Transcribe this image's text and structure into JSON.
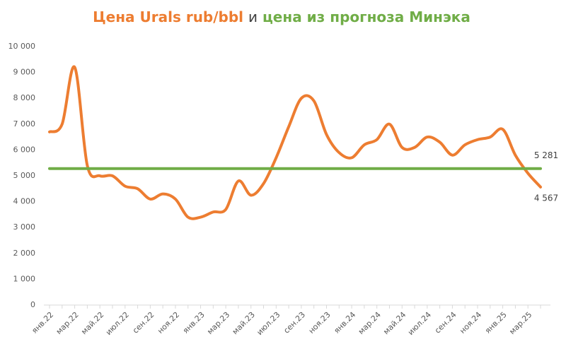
{
  "chart_data": {
    "type": "line",
    "title": [
      "Цена Urals rub/bbl",
      "и",
      "цена из прогноза Минэка"
    ],
    "title_colors": [
      "#ed7d31",
      "#404040",
      "#70ad47"
    ],
    "categories": [
      "янв.22",
      null,
      "мар.22",
      null,
      "май.22",
      null,
      "июл.22",
      null,
      "сен.22",
      null,
      "ноя.22",
      null,
      "янв.23",
      null,
      "мар.23",
      null,
      "май.23",
      null,
      "июл.23",
      null,
      "сен.23",
      null,
      "ноя.23",
      null,
      "янв.24",
      null,
      "мар.24",
      null,
      "май.24",
      null,
      "июл.24",
      null,
      "сен.24",
      null,
      "ноя.24",
      null,
      "янв.25",
      null,
      "мар.25",
      null
    ],
    "series": [
      {
        "name": "Цена Urals rub/bbl",
        "color": "#ed7d31",
        "values": [
          6700,
          7000,
          9200,
          5400,
          5000,
          5000,
          4600,
          4500,
          4100,
          4300,
          4100,
          3400,
          3400,
          3600,
          3700,
          4800,
          4250,
          4700,
          5700,
          6900,
          8000,
          7900,
          6600,
          5900,
          5700,
          6200,
          6400,
          7000,
          6100,
          6100,
          6500,
          6300,
          5800,
          6200,
          6400,
          6500,
          6800,
          5800,
          5100,
          4567
        ],
        "value_labels": [
          null,
          null,
          null,
          null,
          null,
          null,
          null,
          null,
          null,
          null,
          null,
          null,
          null,
          null,
          null,
          null,
          null,
          null,
          null,
          null,
          null,
          null,
          null,
          null,
          null,
          null,
          null,
          null,
          null,
          null,
          null,
          null,
          null,
          null,
          null,
          null,
          null,
          null,
          null,
          "4 567"
        ]
      },
      {
        "name": "цена из прогноза Минэка",
        "color": "#70ad47",
        "values": [
          5281,
          5281,
          5281,
          5281,
          5281,
          5281,
          5281,
          5281,
          5281,
          5281,
          5281,
          5281,
          5281,
          5281,
          5281,
          5281,
          5281,
          5281,
          5281,
          5281,
          5281,
          5281,
          5281,
          5281,
          5281,
          5281,
          5281,
          5281,
          5281,
          5281,
          5281,
          5281,
          5281,
          5281,
          5281,
          5281,
          5281,
          5281,
          5281,
          5281
        ],
        "value_labels": [
          null,
          null,
          null,
          null,
          null,
          null,
          null,
          null,
          null,
          null,
          null,
          null,
          null,
          null,
          null,
          null,
          null,
          null,
          null,
          null,
          null,
          null,
          null,
          null,
          null,
          null,
          null,
          null,
          null,
          null,
          null,
          null,
          null,
          null,
          null,
          null,
          null,
          null,
          null,
          "5 281"
        ]
      }
    ],
    "ylim": [
      0,
      10000
    ],
    "yticks": [
      0,
      {
        "value": 1000,
        "label": "1 000"
      },
      {
        "value": 2000,
        "label": "2 000"
      },
      {
        "value": 3000,
        "label": "3 000"
      },
      {
        "value": 4000,
        "label": "4 000"
      },
      {
        "value": 5000,
        "label": "5 000"
      },
      {
        "value": 6000,
        "label": "6 000"
      },
      {
        "value": 7000,
        "label": "7 000"
      },
      {
        "value": 8000,
        "label": "8 000"
      },
      {
        "value": 9000,
        "label": "9 000"
      },
      {
        "value": 10000,
        "label": "10 000"
      }
    ],
    "grid": false
  }
}
